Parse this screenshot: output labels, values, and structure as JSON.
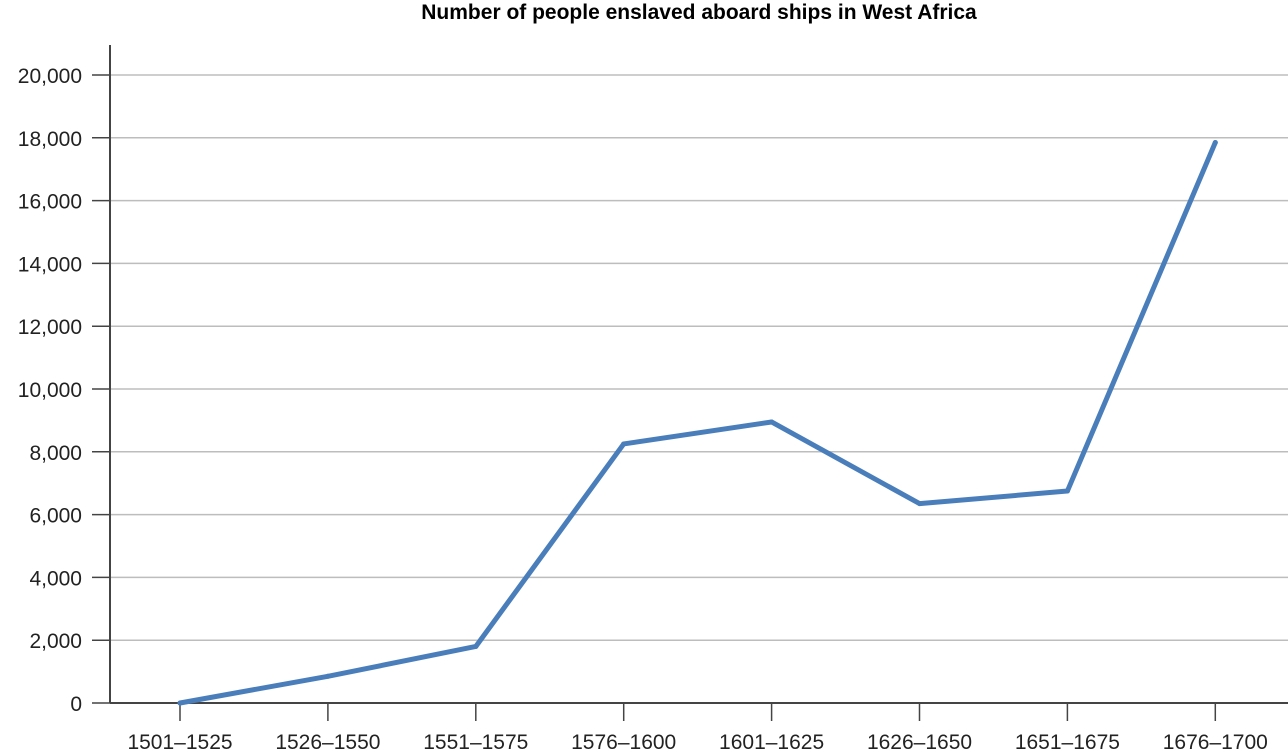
{
  "chart_data": {
    "type": "line",
    "title": "Number of people enslaved aboard ships in West Africa",
    "xlabel": "",
    "ylabel": "",
    "categories": [
      "1501–1525",
      "1526–1550",
      "1551–1575",
      "1576–1600",
      "1601–1625",
      "1626–1650",
      "1651–1675",
      "1676–1700"
    ],
    "series": [
      {
        "values": [
          0,
          850,
          1800,
          8250,
          8950,
          6350,
          6750,
          17850
        ]
      }
    ],
    "y_ticks": [
      "0",
      "2,000",
      "4,000",
      "6,000",
      "8,000",
      "10,000",
      "12,000",
      "14,000",
      "16,000",
      "18,000",
      "20,000"
    ],
    "ylim": [
      0,
      20000
    ],
    "grid": "horizontal",
    "legend": "none",
    "colors": {
      "line": "#4a7ebb",
      "grid": "#bdbdbd",
      "axis": "#444444"
    }
  }
}
